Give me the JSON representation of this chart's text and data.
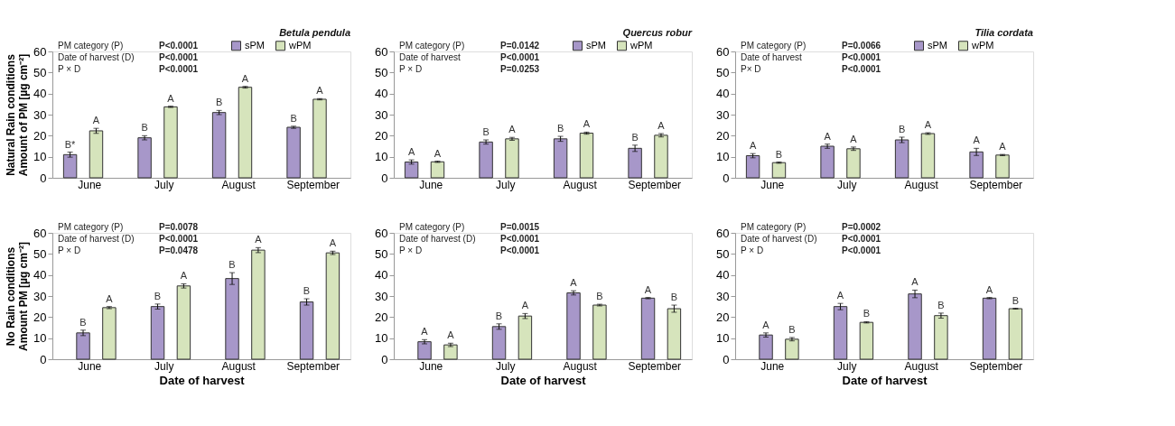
{
  "chart_data": [
    {
      "type": "bar",
      "title": "Betula pendula",
      "ylabel": "Natural Rain conditions\nAmount of PM [µg cm⁻²]",
      "categories": [
        "June",
        "July",
        "August",
        "September"
      ],
      "ylim": [
        0,
        60
      ],
      "yticks": [
        0,
        10,
        20,
        30,
        40,
        50,
        60
      ],
      "grid": false,
      "legend": "top",
      "annotations": [
        "PM category (P)",
        "P<0.0001",
        "Date of harvest  (D)",
        "P<0.0001",
        "P × D",
        "P<0.0001"
      ],
      "series": [
        {
          "name": "sPM",
          "color": "#a797c9",
          "values": [
            11,
            19,
            31,
            24
          ],
          "errors": [
            1.2,
            1,
            1,
            0.5
          ],
          "value_labels": [
            "B*",
            "B",
            "B",
            "B"
          ]
        },
        {
          "name": "wPM",
          "color": "#d6e4bc",
          "values": [
            22.3,
            33.7,
            43,
            37.3
          ],
          "errors": [
            1.2,
            0.3,
            0.4,
            0.3
          ],
          "value_labels": [
            "A",
            "A",
            "A",
            "A"
          ]
        }
      ]
    },
    {
      "type": "bar",
      "title": "Quercus robur",
      "categories": [
        "June",
        "July",
        "August",
        "September"
      ],
      "ylim": [
        0,
        60
      ],
      "yticks": [
        0,
        10,
        20,
        30,
        40,
        50,
        60
      ],
      "grid": false,
      "legend": "top",
      "annotations": [
        "PM category (P)",
        "P=0.0142",
        "Date of harvest",
        "P<0.0001",
        "P × D",
        "P=0.0253"
      ],
      "series": [
        {
          "name": "sPM",
          "color": "#a797c9",
          "values": [
            7.5,
            17,
            18.5,
            14
          ],
          "errors": [
            1,
            1,
            1.2,
            1.5
          ],
          "value_labels": [
            "A",
            "B",
            "B",
            "B"
          ]
        },
        {
          "name": "wPM",
          "color": "#d6e4bc",
          "values": [
            7.6,
            18.5,
            21.2,
            20.2
          ],
          "errors": [
            0.3,
            0.7,
            0.5,
            0.8
          ],
          "value_labels": [
            "A",
            "A",
            "A",
            "A"
          ]
        }
      ]
    },
    {
      "type": "bar",
      "title": "Tilia cordata",
      "categories": [
        "June",
        "July",
        "August",
        "September"
      ],
      "ylim": [
        0,
        60
      ],
      "yticks": [
        0,
        10,
        20,
        30,
        40,
        50,
        60
      ],
      "grid": false,
      "legend": "top",
      "annotations": [
        "PM category (P)",
        "P=0.0066",
        "Date of harvest",
        "P<0.0001",
        "P× D",
        "P<0.0001"
      ],
      "series": [
        {
          "name": "sPM",
          "color": "#a797c9",
          "values": [
            10.5,
            15,
            18,
            12.3
          ],
          "errors": [
            1,
            1,
            1.3,
            1.7
          ],
          "value_labels": [
            "A",
            "A",
            "B",
            "A"
          ]
        },
        {
          "name": "wPM",
          "color": "#d6e4bc",
          "values": [
            7.2,
            13.8,
            21,
            10.8
          ],
          "errors": [
            0.3,
            0.8,
            0.4,
            0.3
          ],
          "value_labels": [
            "B",
            "A",
            "A",
            "A"
          ]
        }
      ]
    },
    {
      "type": "bar",
      "xlabel": "Date of harvest",
      "ylabel": "No Rain conditions\nAmount PM [µg cm⁻²]",
      "categories": [
        "June",
        "July",
        "August",
        "September"
      ],
      "ylim": [
        0,
        60
      ],
      "yticks": [
        0,
        10,
        20,
        30,
        40,
        50,
        60
      ],
      "grid": false,
      "annotations": [
        "PM category (P)",
        "P=0.0078",
        "Date of harvest  (D)",
        "P<0.0001",
        "P × D",
        "P=0.0478"
      ],
      "series": [
        {
          "color": "#a797c9",
          "values": [
            12.5,
            25,
            38.3,
            27.2
          ],
          "errors": [
            1.3,
            1.2,
            2.8,
            1.5
          ],
          "value_labels": [
            "B",
            "B",
            "B",
            "B"
          ]
        },
        {
          "color": "#d6e4bc",
          "values": [
            24.5,
            34.8,
            51.8,
            50.5
          ],
          "errors": [
            0.5,
            1,
            1.2,
            0.8
          ],
          "value_labels": [
            "A",
            "A",
            "A",
            "A"
          ]
        }
      ]
    },
    {
      "type": "bar",
      "xlabel": "Date of harvest",
      "categories": [
        "June",
        "July",
        "August",
        "September"
      ],
      "ylim": [
        0,
        60
      ],
      "yticks": [
        0,
        10,
        20,
        30,
        40,
        50,
        60
      ],
      "grid": false,
      "annotations": [
        "PM category (P)",
        "P=0.0015",
        "Date of harvest  (D)",
        "P<0.0001",
        "P × D",
        "P<0.0001"
      ],
      "series": [
        {
          "color": "#a797c9",
          "values": [
            8.3,
            15.5,
            31.5,
            29
          ],
          "errors": [
            1,
            1.3,
            1,
            0.3
          ],
          "value_labels": [
            "A",
            "B",
            "A",
            "A"
          ]
        },
        {
          "color": "#d6e4bc",
          "values": [
            6.8,
            20.5,
            25.7,
            24
          ],
          "errors": [
            0.8,
            1.2,
            0.4,
            1.7
          ],
          "value_labels": [
            "A",
            "A",
            "B",
            "B"
          ]
        }
      ]
    },
    {
      "type": "bar",
      "xlabel": "Date of harvest",
      "categories": [
        "June",
        "July",
        "August",
        "September"
      ],
      "ylim": [
        0,
        60
      ],
      "yticks": [
        0,
        10,
        20,
        30,
        40,
        50,
        60
      ],
      "grid": false,
      "annotations": [
        "PM category (P)",
        "P=0.0002",
        "Date of harvest  (D)",
        "P<0.0001",
        "P × D",
        "P<0.0001"
      ],
      "series": [
        {
          "color": "#a797c9",
          "values": [
            11.5,
            25,
            31,
            29
          ],
          "errors": [
            1,
            1.5,
            1.8,
            0.3
          ],
          "value_labels": [
            "A",
            "A",
            "A",
            "A"
          ]
        },
        {
          "color": "#d6e4bc",
          "values": [
            9.5,
            17.5,
            20.7,
            24
          ],
          "errors": [
            0.8,
            0.3,
            1.2,
            0.2
          ],
          "value_labels": [
            "B",
            "B",
            "B",
            "B"
          ]
        }
      ]
    }
  ]
}
